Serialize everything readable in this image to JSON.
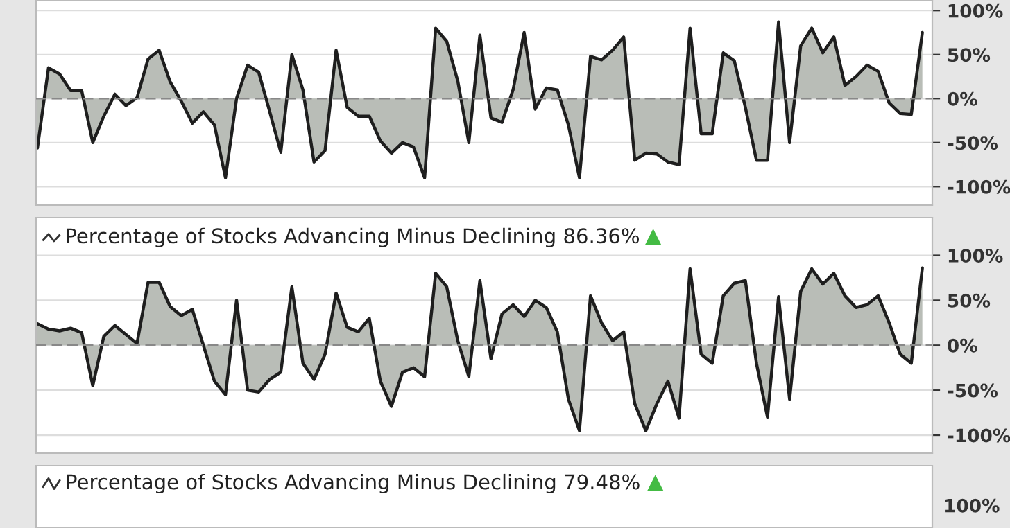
{
  "chart_data": [
    {
      "type": "area",
      "categories": [
        null,
        null,
        null,
        null,
        null,
        null,
        null,
        null,
        null,
        null,
        null,
        null,
        null,
        null,
        null,
        null,
        null,
        null,
        null,
        null,
        null,
        null,
        null,
        null,
        null,
        null,
        null,
        null,
        null,
        null,
        null,
        null,
        null,
        null,
        null,
        null,
        null,
        null,
        null,
        null,
        null,
        null,
        null,
        null,
        null,
        null,
        null,
        null,
        null,
        null,
        null,
        null,
        null,
        null,
        null,
        null,
        null,
        null,
        null,
        null,
        null,
        null,
        null,
        null,
        null,
        null,
        null,
        null,
        null,
        null,
        null,
        null,
        null,
        null,
        null,
        null,
        null,
        null,
        null,
        null,
        null
      ],
      "series": [
        {
          "color": "#b9bdb7",
          "values": [
            -56,
            35,
            28,
            9,
            9,
            -50,
            -20,
            5,
            -8,
            1,
            45,
            55,
            19,
            -3,
            -28,
            -15,
            -30,
            -90,
            0,
            38,
            30,
            -15,
            -61,
            50,
            10,
            -72,
            -59,
            55,
            -10,
            -20,
            -20,
            -48,
            -62,
            -50,
            -55,
            -90,
            80,
            65,
            20,
            -50,
            72,
            -22,
            -27,
            10,
            75,
            -12,
            12,
            10,
            -30,
            -90,
            48,
            44,
            55,
            70,
            -70,
            -62,
            -63,
            -72,
            -75,
            80,
            -40,
            -40,
            52,
            43,
            -10,
            -70,
            -70,
            87,
            -50,
            60,
            80,
            52,
            70,
            15,
            25,
            38,
            31,
            -5,
            -17,
            -18,
            75
          ]
        }
      ],
      "ylim": [
        -121,
        112
      ],
      "yticks": [
        {
          "value": -100,
          "label": "-100%"
        },
        {
          "value": -50,
          "label": "-50%"
        },
        {
          "value": 0,
          "label": "0%"
        },
        {
          "value": 50,
          "label": "50%"
        },
        {
          "value": 100,
          "label": "100%"
        }
      ],
      "ref_lines": [
        {
          "axis": "y",
          "value": 0,
          "color": "#888888",
          "line_style": "dashed"
        }
      ],
      "grid": "y",
      "tick_labels": "y"
    },
    {
      "type": "area",
      "title": "Percentage of Stocks Advancing Minus Declining 86.36%",
      "categories": [
        null,
        null,
        null,
        null,
        null,
        null,
        null,
        null,
        null,
        null,
        null,
        null,
        null,
        null,
        null,
        null,
        null,
        null,
        null,
        null,
        null,
        null,
        null,
        null,
        null,
        null,
        null,
        null,
        null,
        null,
        null,
        null,
        null,
        null,
        null,
        null,
        null,
        null,
        null,
        null,
        null,
        null,
        null,
        null,
        null,
        null,
        null,
        null,
        null,
        null,
        null,
        null,
        null,
        null,
        null,
        null,
        null,
        null,
        null,
        null,
        null,
        null,
        null,
        null,
        null,
        null,
        null,
        null,
        null,
        null,
        null,
        null,
        null,
        null,
        null,
        null,
        null,
        null,
        null,
        null,
        null
      ],
      "series": [
        {
          "color": "#b9bdb7",
          "values": [
            24,
            18,
            16,
            19,
            14,
            -45,
            10,
            22,
            12,
            2,
            70,
            70,
            43,
            33,
            40,
            0,
            -40,
            -55,
            50,
            -50,
            -52,
            -38,
            -30,
            65,
            -20,
            -38,
            -10,
            58,
            20,
            15,
            30,
            -40,
            -68,
            -30,
            -25,
            -35,
            80,
            65,
            5,
            -35,
            72,
            -15,
            35,
            45,
            32,
            50,
            42,
            15,
            -60,
            -95,
            55,
            25,
            5,
            15,
            -65,
            -95,
            -65,
            -40,
            -81,
            85,
            -10,
            -20,
            55,
            69,
            72,
            -20,
            -80,
            54,
            -60,
            60,
            85,
            68,
            80,
            55,
            42,
            45,
            55,
            25,
            -10,
            -20,
            86
          ]
        }
      ],
      "ylim": [
        -120,
        142
      ],
      "yticks": [
        {
          "value": -100,
          "label": "-100%"
        },
        {
          "value": -50,
          "label": "-50%"
        },
        {
          "value": 0,
          "label": "0%"
        },
        {
          "value": 50,
          "label": "50%"
        },
        {
          "value": 100,
          "label": "100%"
        }
      ],
      "ref_lines": [
        {
          "axis": "y",
          "value": 0,
          "color": "#888888",
          "line_style": "dashed"
        }
      ],
      "grid": "y",
      "tick_labels": "y"
    },
    {
      "type": "other",
      "title": "Percentage of Stocks Advancing Minus Declining 79.48%",
      "annotations": [
        "100%"
      ]
    }
  ]
}
